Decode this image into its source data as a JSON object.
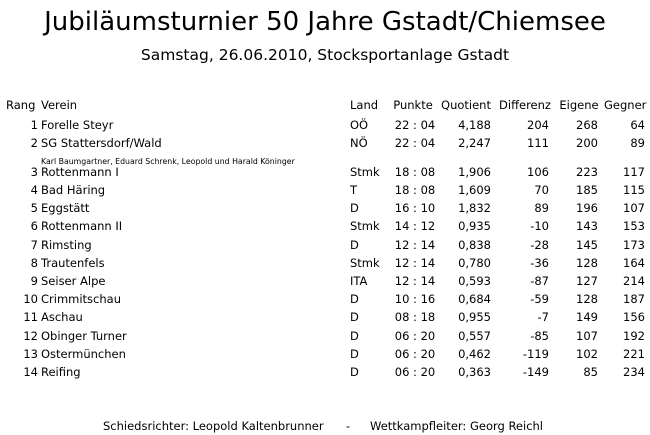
{
  "title": "Jubiläumsturnier 50 Jahre Gstadt/Chiemsee",
  "subtitle": "Samstag, 26.06.2010, Stocksportanlage Gstadt",
  "headers": {
    "rang": "Rang",
    "verein": "Verein",
    "land": "Land",
    "punkte": "Punkte",
    "quotient": "Quotient",
    "differenz": "Differenz",
    "eigene": "Eigene",
    "gegner": "Gegner"
  },
  "rows": [
    {
      "rang": "1",
      "verein": "Forelle Steyr",
      "land": "OÖ",
      "punkte": "22 : 04",
      "quotient": "4,188",
      "differenz": "204",
      "eigene": "268",
      "gegner": "64"
    },
    {
      "rang": "2",
      "verein": "SG Stattersdorf/Wald",
      "land": "NÖ",
      "punkte": "22 : 04",
      "quotient": "2,247",
      "differenz": "111",
      "eigene": "200",
      "gegner": "89"
    },
    {
      "rang": "3",
      "verein": "Rottenmann I",
      "land": "Stmk",
      "punkte": "18 : 08",
      "quotient": "1,906",
      "differenz": "106",
      "eigene": "223",
      "gegner": "117"
    },
    {
      "rang": "4",
      "verein": "Bad Häring",
      "land": "T",
      "punkte": "18 : 08",
      "quotient": "1,609",
      "differenz": "70",
      "eigene": "185",
      "gegner": "115"
    },
    {
      "rang": "5",
      "verein": "Eggstätt",
      "land": "D",
      "punkte": "16 : 10",
      "quotient": "1,832",
      "differenz": "89",
      "eigene": "196",
      "gegner": "107"
    },
    {
      "rang": "6",
      "verein": "Rottenmann II",
      "land": "Stmk",
      "punkte": "14 : 12",
      "quotient": "0,935",
      "differenz": "-10",
      "eigene": "143",
      "gegner": "153"
    },
    {
      "rang": "7",
      "verein": "Rimsting",
      "land": "D",
      "punkte": "12 : 14",
      "quotient": "0,838",
      "differenz": "-28",
      "eigene": "145",
      "gegner": "173"
    },
    {
      "rang": "8",
      "verein": "Trautenfels",
      "land": "Stmk",
      "punkte": "12 : 14",
      "quotient": "0,780",
      "differenz": "-36",
      "eigene": "128",
      "gegner": "164"
    },
    {
      "rang": "9",
      "verein": "Seiser Alpe",
      "land": "ITA",
      "punkte": "12 : 14",
      "quotient": "0,593",
      "differenz": "-87",
      "eigene": "127",
      "gegner": "214"
    },
    {
      "rang": "10",
      "verein": "Crimmitschau",
      "land": "D",
      "punkte": "10 : 16",
      "quotient": "0,684",
      "differenz": "-59",
      "eigene": "128",
      "gegner": "187"
    },
    {
      "rang": "11",
      "verein": "Aschau",
      "land": "D",
      "punkte": "08 : 18",
      "quotient": "0,955",
      "differenz": "-7",
      "eigene": "149",
      "gegner": "156"
    },
    {
      "rang": "12",
      "verein": "Obinger Turner",
      "land": "D",
      "punkte": "06 : 20",
      "quotient": "0,557",
      "differenz": "-85",
      "eigene": "107",
      "gegner": "192"
    },
    {
      "rang": "13",
      "verein": "Ostermünchen",
      "land": "D",
      "punkte": "06 : 20",
      "quotient": "0,462",
      "differenz": "-119",
      "eigene": "102",
      "gegner": "221"
    },
    {
      "rang": "14",
      "verein": "Reifing",
      "land": "D",
      "punkte": "06 : 20",
      "quotient": "0,363",
      "differenz": "-149",
      "eigene": "85",
      "gegner": "234"
    }
  ],
  "second_place_players": "Karl Baumgartner, Eduard Schrenk, Leopold und Harald Köninger",
  "footer": {
    "referee": "Schiedsrichter: Leopold Kaltenbrunner",
    "separator": "-",
    "leader": "Wettkampfleiter: Georg Reichl"
  }
}
